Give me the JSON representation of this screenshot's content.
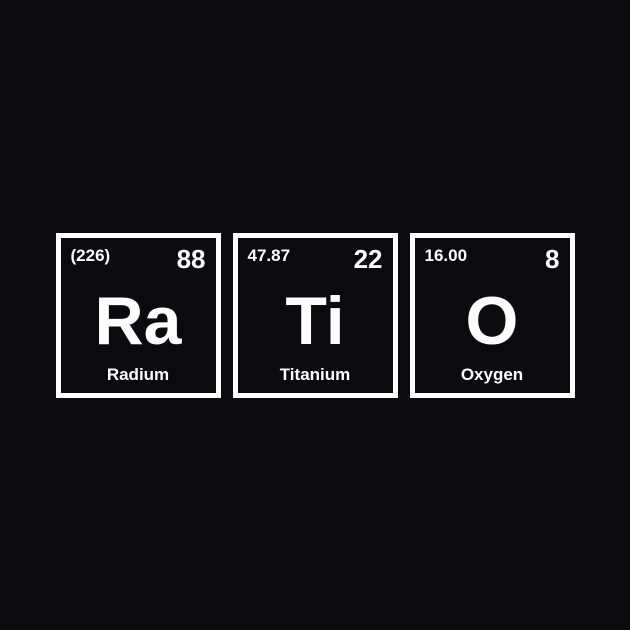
{
  "background_color": "#0a0a0f",
  "border_color": "#ffffff",
  "text_color": "#ffffff",
  "border_width": 5,
  "tile_size": 165,
  "tile_gap": 12,
  "symbol_fontsize": 68,
  "number_fontsize": 26,
  "mass_fontsize": 17,
  "name_fontsize": 17,
  "elements": [
    {
      "mass": "(226)",
      "atomic_number": "88",
      "symbol": "Ra",
      "name": "Radium"
    },
    {
      "mass": "47.87",
      "atomic_number": "22",
      "symbol": "Ti",
      "name": "Titanium"
    },
    {
      "mass": "16.00",
      "atomic_number": "8",
      "symbol": "O",
      "name": "Oxygen"
    }
  ]
}
